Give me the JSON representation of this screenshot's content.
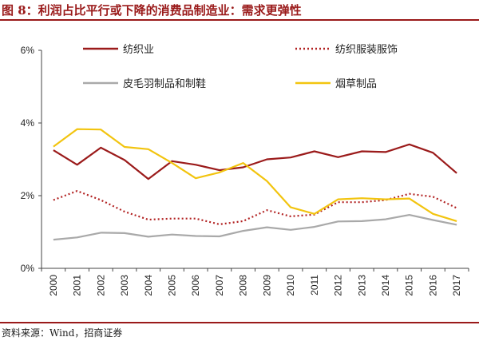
{
  "title": "图 8：利润占比平行或下降的消费品制造业：需求更弹性",
  "source": "资料来源：Wind，招商证券",
  "chart_data": {
    "type": "line",
    "title": "利润占比平行或下降的消费品制造业：需求更弹性",
    "xlabel": "",
    "ylabel": "",
    "x": [
      "2000",
      "2001",
      "2002",
      "2003",
      "2004",
      "2005",
      "2006",
      "2007",
      "2008",
      "2009",
      "2010",
      "2011",
      "2012",
      "2013",
      "2014",
      "2015",
      "2016",
      "2017"
    ],
    "ylim": [
      0,
      6
    ],
    "yticks": [
      0,
      2,
      4,
      6
    ],
    "ytick_labels": [
      "0%",
      "2%",
      "4%",
      "6%"
    ],
    "legend_position": "top",
    "series": [
      {
        "name": "纺织业",
        "color": "#9b1b1b",
        "style": "solid",
        "values": [
          3.25,
          2.85,
          3.32,
          2.98,
          2.46,
          2.95,
          2.85,
          2.7,
          2.78,
          3.0,
          3.05,
          3.22,
          3.06,
          3.22,
          3.2,
          3.41,
          3.18,
          2.62
        ]
      },
      {
        "name": "纺织服装服饰",
        "color": "#b22222",
        "style": "dotted",
        "values": [
          1.88,
          2.13,
          1.88,
          1.56,
          1.34,
          1.37,
          1.37,
          1.21,
          1.3,
          1.6,
          1.43,
          1.48,
          1.82,
          1.82,
          1.88,
          2.05,
          1.97,
          1.66
        ]
      },
      {
        "name": "皮毛羽制品和制鞋",
        "color": "#a9a9a9",
        "style": "solid",
        "values": [
          0.79,
          0.85,
          0.98,
          0.97,
          0.87,
          0.93,
          0.89,
          0.88,
          1.03,
          1.13,
          1.06,
          1.14,
          1.29,
          1.3,
          1.35,
          1.47,
          1.33,
          1.2
        ]
      },
      {
        "name": "烟草制品",
        "color": "#f2c40f",
        "style": "solid",
        "values": [
          3.35,
          3.83,
          3.82,
          3.34,
          3.28,
          2.9,
          2.48,
          2.64,
          2.9,
          2.4,
          1.68,
          1.5,
          1.9,
          1.93,
          1.9,
          1.92,
          1.5,
          1.3
        ]
      }
    ]
  }
}
